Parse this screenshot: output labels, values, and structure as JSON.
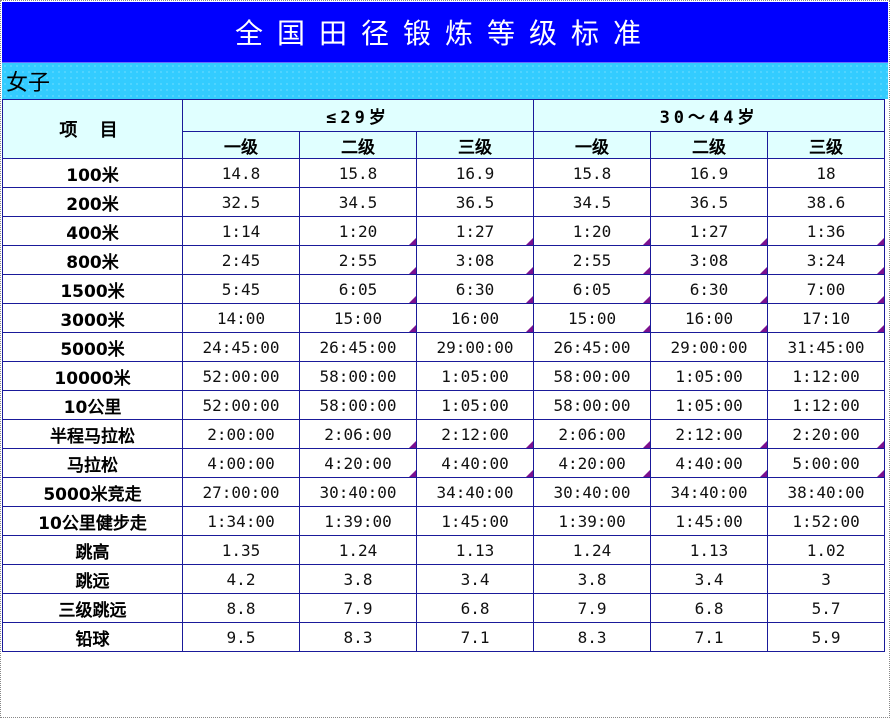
{
  "title": "全国田径锻炼等级标准",
  "subtitle": "女子",
  "header": {
    "item_label": "项 目",
    "groups": [
      "≤29岁",
      "30～44岁"
    ],
    "levels": [
      "一级",
      "二级",
      "三级",
      "一级",
      "二级",
      "三级"
    ]
  },
  "rows": [
    {
      "item": "100米",
      "values": [
        "14.8",
        "15.8",
        "16.9",
        "15.8",
        "16.9",
        "18"
      ]
    },
    {
      "item": "200米",
      "values": [
        "32.5",
        "34.5",
        "36.5",
        "34.5",
        "36.5",
        "38.6"
      ]
    },
    {
      "item": "400米",
      "values": [
        "1:14",
        "1:20",
        "1:27",
        "1:20",
        "1:27",
        "1:36"
      ]
    },
    {
      "item": "800米",
      "values": [
        "2:45",
        "2:55",
        "3:08",
        "2:55",
        "3:08",
        "3:24"
      ]
    },
    {
      "item": "1500米",
      "values": [
        "5:45",
        "6:05",
        "6:30",
        "6:05",
        "6:30",
        "7:00"
      ]
    },
    {
      "item": "3000米",
      "values": [
        "14:00",
        "15:00",
        "16:00",
        "15:00",
        "16:00",
        "17:10"
      ]
    },
    {
      "item": "5000米",
      "values": [
        "24:45:00",
        "26:45:00",
        "29:00:00",
        "26:45:00",
        "29:00:00",
        "31:45:00"
      ]
    },
    {
      "item": "10000米",
      "values": [
        "52:00:00",
        "58:00:00",
        "1:05:00",
        "58:00:00",
        "1:05:00",
        "1:12:00"
      ]
    },
    {
      "item": "10公里",
      "values": [
        "52:00:00",
        "58:00:00",
        "1:05:00",
        "58:00:00",
        "1:05:00",
        "1:12:00"
      ]
    },
    {
      "item": "半程马拉松",
      "values": [
        "2:00:00",
        "2:06:00",
        "2:12:00",
        "2:06:00",
        "2:12:00",
        "2:20:00"
      ]
    },
    {
      "item": "马拉松",
      "values": [
        "4:00:00",
        "4:20:00",
        "4:40:00",
        "4:20:00",
        "4:40:00",
        "5:00:00"
      ]
    },
    {
      "item": "5000米竞走",
      "values": [
        "27:00:00",
        "30:40:00",
        "34:40:00",
        "30:40:00",
        "34:40:00",
        "38:40:00"
      ]
    },
    {
      "item": "10公里健步走",
      "values": [
        "1:34:00",
        "1:39:00",
        "1:45:00",
        "1:39:00",
        "1:45:00",
        "1:52:00"
      ]
    },
    {
      "item": "跳高",
      "values": [
        "1.35",
        "1.24",
        "1.13",
        "1.24",
        "1.13",
        "1.02"
      ]
    },
    {
      "item": "跳远",
      "values": [
        "4.2",
        "3.8",
        "3.4",
        "3.8",
        "3.4",
        "3"
      ]
    },
    {
      "item": "三级跳远",
      "values": [
        "8.8",
        "7.9",
        "6.8",
        "7.9",
        "6.8",
        "5.7"
      ]
    },
    {
      "item": "铅球",
      "values": [
        "9.5",
        "8.3",
        "7.1",
        "8.3",
        "7.1",
        "5.9"
      ]
    }
  ],
  "colors": {
    "title_bg": "#0000ff",
    "subtitle_bg": "#33ccff",
    "header_bg": "#e0ffff",
    "grid_line": "#1a1a9a",
    "comment_marker": "#7a1090"
  }
}
